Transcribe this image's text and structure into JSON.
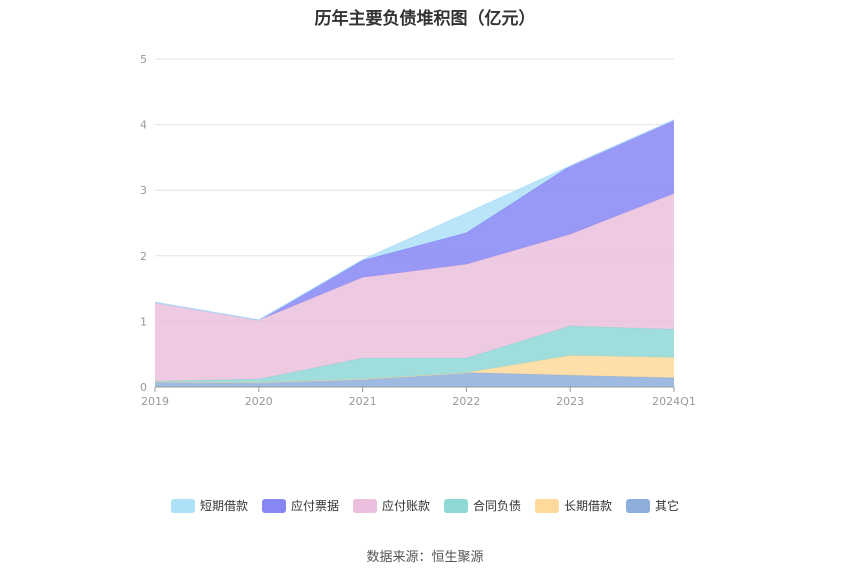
{
  "chart_data": {
    "type": "area",
    "stacked": true,
    "title": "历年主要负债堆积图（亿元）",
    "categories": [
      "2019",
      "2020",
      "2021",
      "2022",
      "2023",
      "2024Q1"
    ],
    "ylim": [
      0,
      5
    ],
    "yticks": [
      "0",
      "1",
      "2",
      "3",
      "4",
      "5"
    ],
    "grid": true,
    "legend_position": "bottom",
    "series": [
      {
        "name": "其它",
        "color": "#8eaedc",
        "values": [
          0.08,
          0.07,
          0.12,
          0.22,
          0.18,
          0.14
        ]
      },
      {
        "name": "长期借款",
        "color": "#ffd99a",
        "values": [
          0.0,
          0.0,
          0.0,
          0.0,
          0.3,
          0.31
        ]
      },
      {
        "name": "合同负债",
        "color": "#8ed8d6",
        "values": [
          0.01,
          0.05,
          0.32,
          0.22,
          0.45,
          0.43
        ]
      },
      {
        "name": "应付账款",
        "color": "#ebbfdd",
        "values": [
          1.2,
          0.9,
          1.23,
          1.43,
          1.4,
          2.07
        ]
      },
      {
        "name": "应付票据",
        "color": "#8686f5",
        "values": [
          0.0,
          0.0,
          0.26,
          0.48,
          1.04,
          1.12
        ]
      },
      {
        "name": "短期借款",
        "color": "#aee0f8",
        "values": [
          0.0,
          0.0,
          0.01,
          0.3,
          0.0,
          0.0
        ]
      }
    ]
  },
  "legend": {
    "items": [
      {
        "label": "短期借款",
        "color": "#aee0f8"
      },
      {
        "label": "应付票据",
        "color": "#8686f5"
      },
      {
        "label": "应付账款",
        "color": "#ebbfdd"
      },
      {
        "label": "合同负债",
        "color": "#8ed8d6"
      },
      {
        "label": "长期借款",
        "color": "#ffd99a"
      },
      {
        "label": "其它",
        "color": "#8eaedc"
      }
    ]
  },
  "source": "数据来源：恒生聚源"
}
